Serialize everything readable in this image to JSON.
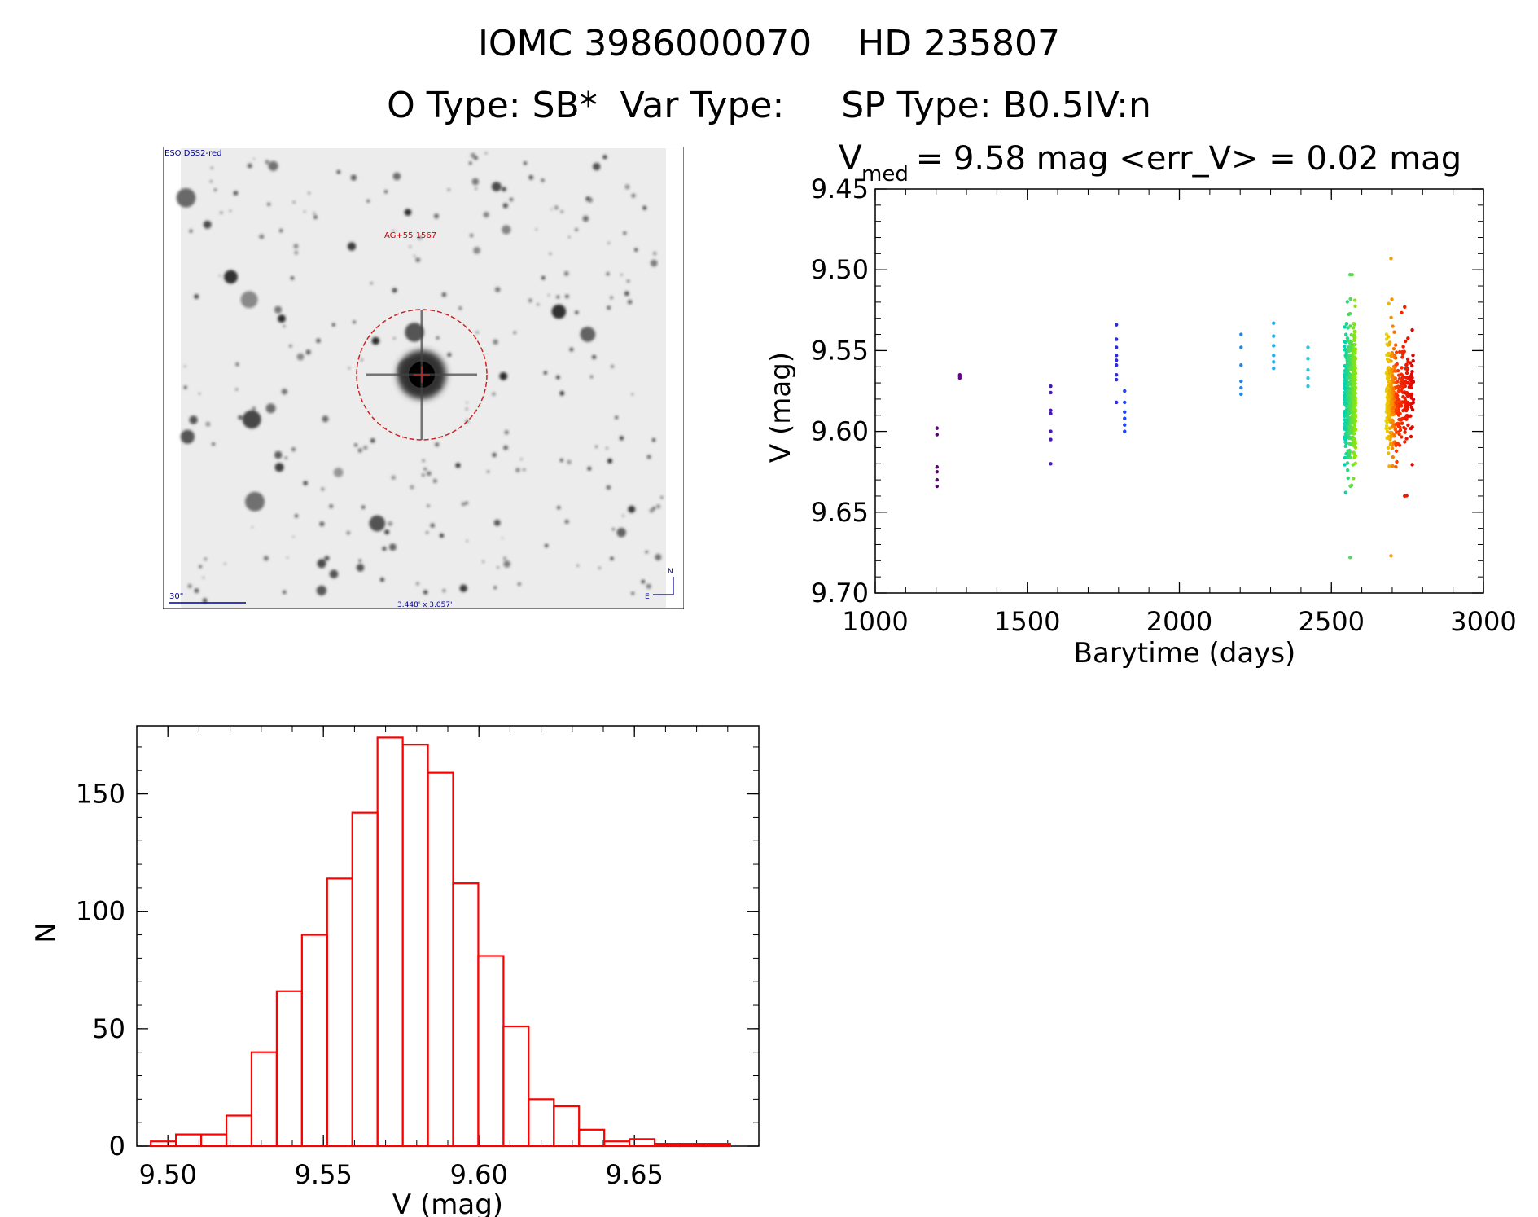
{
  "header": {
    "line1": "IOMC 3986000070    HD 235807",
    "line2": "O Type: SB*  Var Type:     SP Type: B0.5IV:n"
  },
  "finder_chart": {
    "survey_label": "ESO DSS2-red",
    "object_label": "AG+55 1567",
    "scale_label": "30\"",
    "fov_label": "3.448' x 3.057'",
    "compass_n": "N",
    "compass_e": "E"
  },
  "colors": {
    "histogram": "#ff0000",
    "finder_circle": "#cc2222",
    "finder_text_red": "#cc0000",
    "finder_text_blue": "#000099"
  },
  "chart_data": [
    {
      "type": "scatter",
      "title_main": "V",
      "title_sub": "med",
      "title_rest": " = 9.58 mag <err_V> = 0.02 mag",
      "xlabel": "Barytime (days)",
      "ylabel": "V (mag)",
      "xlim": [
        1000,
        3000
      ],
      "ylim": [
        9.7,
        9.45
      ],
      "x_ticks": [
        "1000",
        "1500",
        "2000",
        "2500",
        "3000"
      ],
      "y_ticks": [
        "9.45",
        "9.50",
        "9.55",
        "9.60",
        "9.65",
        "9.70"
      ],
      "color_scale": "rainbow by epoch",
      "groups": [
        {
          "x": 1203,
          "color": "#5a0070",
          "y": [
            9.598,
            9.602,
            9.622,
            9.625,
            9.63,
            9.634
          ]
        },
        {
          "x": 1278,
          "color": "#6a0090",
          "y": [
            9.565,
            9.566,
            9.567
          ]
        },
        {
          "x": 1577,
          "color": "#4a14c8",
          "y": [
            9.572,
            9.576,
            9.587,
            9.589,
            9.6,
            9.605,
            9.62
          ]
        },
        {
          "x": 1793,
          "color": "#2a2ae0",
          "y": [
            9.534,
            9.543,
            9.548,
            9.553,
            9.556,
            9.559,
            9.565,
            9.568,
            9.582
          ]
        },
        {
          "x": 1820,
          "color": "#2244ee",
          "y": [
            9.575,
            9.582,
            9.588,
            9.592,
            9.596,
            9.6
          ]
        },
        {
          "x": 2203,
          "color": "#1c86ee",
          "y": [
            9.54,
            9.548,
            9.559,
            9.569,
            9.573,
            9.577
          ]
        },
        {
          "x": 2310,
          "color": "#1eb0ee",
          "y": [
            9.533,
            9.541,
            9.547,
            9.553,
            9.557,
            9.561
          ]
        },
        {
          "x": 2423,
          "color": "#22c8dd",
          "y": [
            9.548,
            9.555,
            9.562,
            9.567,
            9.572
          ]
        }
      ],
      "clusters": [
        {
          "x_min": 2543,
          "x_max": 2580,
          "center": 9.578,
          "spread": 0.02,
          "count": 520,
          "y_min": 9.503,
          "y_max": 9.678,
          "color_from": "#00d2b4",
          "color_to": "#96e600"
        },
        {
          "x_min": 2680,
          "x_max": 2712,
          "center": 9.579,
          "spread": 0.018,
          "count": 220,
          "y_min": 9.493,
          "y_max": 9.677,
          "color_from": "#e6dc00",
          "color_to": "#ff5a00"
        },
        {
          "x_min": 2712,
          "x_max": 2770,
          "center": 9.58,
          "spread": 0.017,
          "count": 170,
          "y_min": 9.523,
          "y_max": 9.64,
          "color_from": "#ff3c00",
          "color_to": "#dc0000"
        }
      ]
    },
    {
      "type": "bar",
      "subtype": "histogram",
      "xlabel": "V (mag)",
      "ylabel": "N",
      "xlim": [
        9.49,
        9.69
      ],
      "ylim": [
        0,
        179
      ],
      "x_ticks": [
        "9.50",
        "9.55",
        "9.60",
        "9.65"
      ],
      "y_ticks": [
        "0",
        "50",
        "100",
        "150"
      ],
      "bin_start": 9.4945,
      "bin_width": 0.0081,
      "values": [
        2,
        5,
        5,
        13,
        40,
        66,
        90,
        114,
        142,
        174,
        171,
        159,
        112,
        81,
        51,
        20,
        17,
        7,
        2,
        3,
        1,
        1,
        1
      ]
    }
  ]
}
